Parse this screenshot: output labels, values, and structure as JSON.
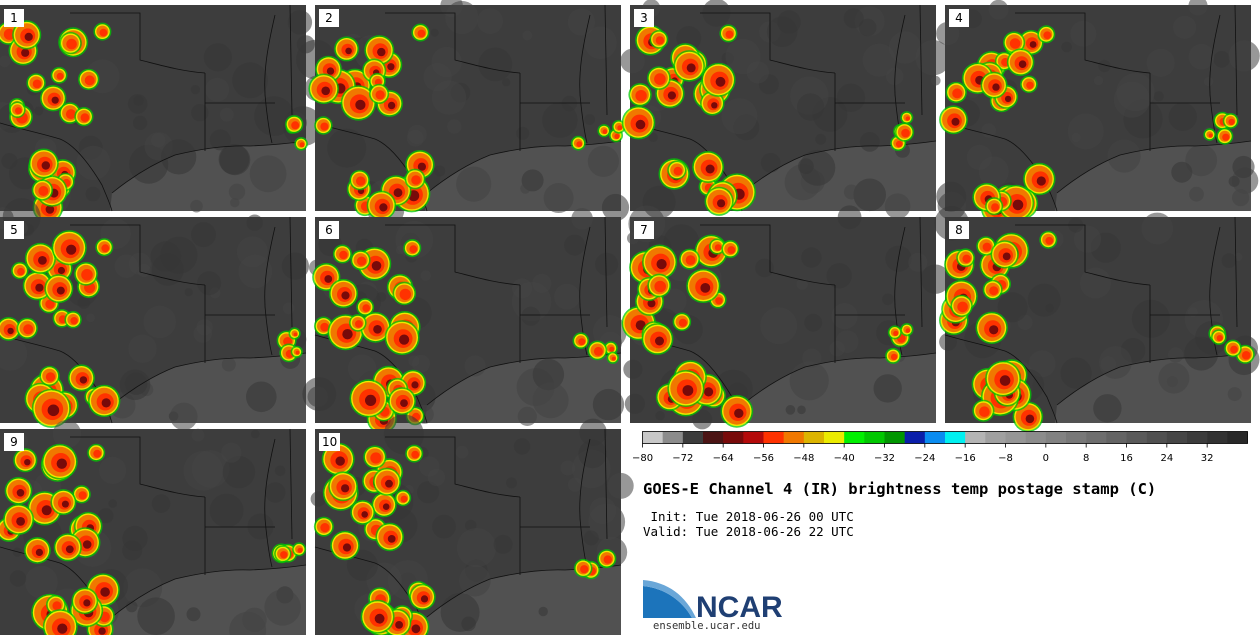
{
  "title": "GOES-E Channel 4 (IR) brightness temp postage stamp (C)",
  "init_label": " Init:",
  "init_time": "Tue 2018-06-26 00 UTC",
  "valid_label": "Valid:",
  "valid_time": "Tue 2018-06-26 22 UTC",
  "logo_text": "NCAR",
  "logo_url": "ensemble.ucar.edu",
  "panels": [
    {
      "label": "1"
    },
    {
      "label": "2"
    },
    {
      "label": "3"
    },
    {
      "label": "4"
    },
    {
      "label": "5"
    },
    {
      "label": "6"
    },
    {
      "label": "7"
    },
    {
      "label": "8"
    },
    {
      "label": "9"
    },
    {
      "label": "10"
    }
  ],
  "colorbar": {
    "min": -80,
    "max": 40,
    "step": 4,
    "tick_labels": [
      "−80",
      "−72",
      "−64",
      "−56",
      "−48",
      "−40",
      "−32",
      "−24",
      "−16",
      "−8",
      "0",
      "8",
      "16",
      "24",
      "32"
    ],
    "tick_values": [
      -80,
      -72,
      -64,
      -56,
      -48,
      -40,
      -32,
      -24,
      -16,
      -8,
      0,
      8,
      16,
      24,
      32
    ],
    "colors": [
      "#c8c8c8",
      "#8c8c8c",
      "#3c3c3c",
      "#4b1414",
      "#780a0a",
      "#b40a0a",
      "#ff3200",
      "#f07800",
      "#dcb400",
      "#ebeb00",
      "#00f000",
      "#00c800",
      "#009600",
      "#0a1eaa",
      "#0a8cf0",
      "#00f0f0",
      "#b4b4b4",
      "#a0a0a0",
      "#969696",
      "#8c8c8c",
      "#828282",
      "#787878",
      "#6e6e6e",
      "#646464",
      "#5a5a5a",
      "#505050",
      "#464646",
      "#3c3c3c",
      "#323232",
      "#282828"
    ]
  }
}
